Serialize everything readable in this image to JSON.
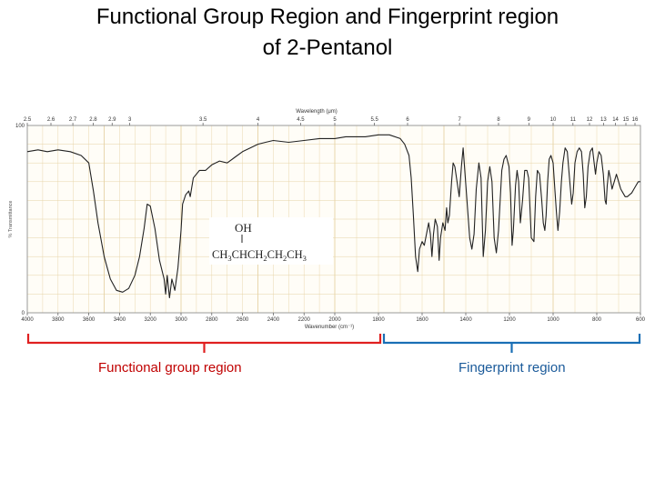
{
  "slide": {
    "title_line1": "Functional Group Region and Fingerprint region",
    "title_line2": "of 2-Pentanol"
  },
  "chart_data": {
    "type": "line",
    "top_axis_label": "Wavelength (μm)",
    "bottom_axis_label": "Wavenumber (cm⁻¹)",
    "ylabel": "% Transmittance",
    "y_tick_labels": [
      "100",
      "0"
    ],
    "top_ticks": [
      "2.5",
      "2.6",
      "2.7",
      "2.8",
      "2.9",
      "3",
      "3.5",
      "4",
      "4.5",
      "5",
      "5.5",
      "6",
      "7",
      "8",
      "9",
      "10",
      "11",
      "12",
      "13",
      "14",
      "15",
      "16"
    ],
    "bottom_ticks": [
      "4000",
      "3800",
      "3600",
      "3400",
      "3200",
      "3000",
      "2800",
      "2600",
      "2400",
      "2200",
      "2000",
      "1800",
      "1600",
      "1400",
      "1200",
      "1000",
      "800",
      "600"
    ],
    "xlim": [
      4000,
      600
    ],
    "ylim": [
      0,
      100
    ],
    "grid": true,
    "series": [
      {
        "points": [
          [
            4000,
            86
          ],
          [
            3930,
            87
          ],
          [
            3870,
            86
          ],
          [
            3800,
            87
          ],
          [
            3720,
            86
          ],
          [
            3650,
            84
          ],
          [
            3600,
            80
          ],
          [
            3570,
            65
          ],
          [
            3540,
            48
          ],
          [
            3500,
            30
          ],
          [
            3460,
            18
          ],
          [
            3420,
            12
          ],
          [
            3380,
            11
          ],
          [
            3340,
            13
          ],
          [
            3300,
            20
          ],
          [
            3270,
            30
          ],
          [
            3240,
            45
          ],
          [
            3220,
            58
          ],
          [
            3200,
            57
          ],
          [
            3170,
            45
          ],
          [
            3140,
            28
          ],
          [
            3110,
            18
          ],
          [
            3100,
            10
          ],
          [
            3090,
            20
          ],
          [
            3075,
            8
          ],
          [
            3060,
            18
          ],
          [
            3040,
            12
          ],
          [
            3020,
            24
          ],
          [
            3000,
            44
          ],
          [
            2990,
            58
          ],
          [
            2970,
            63
          ],
          [
            2950,
            65
          ],
          [
            2940,
            62
          ],
          [
            2920,
            72
          ],
          [
            2880,
            76
          ],
          [
            2840,
            76
          ],
          [
            2800,
            79
          ],
          [
            2750,
            81
          ],
          [
            2700,
            80
          ],
          [
            2650,
            83
          ],
          [
            2600,
            86
          ],
          [
            2550,
            88
          ],
          [
            2500,
            90
          ],
          [
            2450,
            91
          ],
          [
            2400,
            92
          ],
          [
            2300,
            91
          ],
          [
            2200,
            92
          ],
          [
            2100,
            93
          ],
          [
            2000,
            93
          ],
          [
            1950,
            94
          ],
          [
            1900,
            94
          ],
          [
            1860,
            94
          ],
          [
            1800,
            95
          ],
          [
            1750,
            95
          ],
          [
            1700,
            93
          ],
          [
            1680,
            90
          ],
          [
            1660,
            84
          ],
          [
            1650,
            72
          ],
          [
            1640,
            52
          ],
          [
            1630,
            30
          ],
          [
            1620,
            22
          ],
          [
            1612,
            34
          ],
          [
            1600,
            38
          ],
          [
            1590,
            36
          ],
          [
            1580,
            42
          ],
          [
            1570,
            48
          ],
          [
            1562,
            42
          ],
          [
            1555,
            30
          ],
          [
            1548,
            42
          ],
          [
            1540,
            50
          ],
          [
            1530,
            46
          ],
          [
            1522,
            28
          ],
          [
            1516,
            40
          ],
          [
            1505,
            48
          ],
          [
            1495,
            44
          ],
          [
            1488,
            56
          ],
          [
            1482,
            48
          ],
          [
            1475,
            52
          ],
          [
            1465,
            70
          ],
          [
            1458,
            80
          ],
          [
            1450,
            78
          ],
          [
            1440,
            70
          ],
          [
            1430,
            62
          ],
          [
            1420,
            78
          ],
          [
            1412,
            88
          ],
          [
            1402,
            72
          ],
          [
            1392,
            56
          ],
          [
            1382,
            40
          ],
          [
            1372,
            34
          ],
          [
            1362,
            42
          ],
          [
            1352,
            66
          ],
          [
            1340,
            80
          ],
          [
            1330,
            72
          ],
          [
            1320,
            30
          ],
          [
            1310,
            44
          ],
          [
            1300,
            70
          ],
          [
            1290,
            78
          ],
          [
            1280,
            70
          ],
          [
            1270,
            40
          ],
          [
            1260,
            32
          ],
          [
            1250,
            44
          ],
          [
            1235,
            76
          ],
          [
            1225,
            82
          ],
          [
            1215,
            84
          ],
          [
            1202,
            78
          ],
          [
            1195,
            64
          ],
          [
            1188,
            36
          ],
          [
            1182,
            44
          ],
          [
            1172,
            68
          ],
          [
            1165,
            76
          ],
          [
            1158,
            70
          ],
          [
            1150,
            48
          ],
          [
            1140,
            60
          ],
          [
            1130,
            76
          ],
          [
            1120,
            76
          ],
          [
            1112,
            72
          ],
          [
            1100,
            40
          ],
          [
            1088,
            38
          ],
          [
            1080,
            62
          ],
          [
            1072,
            76
          ],
          [
            1062,
            74
          ],
          [
            1052,
            60
          ],
          [
            1045,
            48
          ],
          [
            1038,
            44
          ],
          [
            1032,
            52
          ],
          [
            1025,
            70
          ],
          [
            1018,
            82
          ],
          [
            1010,
            84
          ],
          [
            1000,
            80
          ],
          [
            992,
            66
          ],
          [
            985,
            54
          ],
          [
            978,
            44
          ],
          [
            970,
            54
          ],
          [
            962,
            70
          ],
          [
            955,
            80
          ],
          [
            945,
            88
          ],
          [
            935,
            86
          ],
          [
            925,
            72
          ],
          [
            915,
            58
          ],
          [
            908,
            64
          ],
          [
            900,
            80
          ],
          [
            890,
            86
          ],
          [
            880,
            88
          ],
          [
            870,
            86
          ],
          [
            862,
            74
          ],
          [
            855,
            56
          ],
          [
            848,
            62
          ],
          [
            840,
            78
          ],
          [
            830,
            86
          ],
          [
            820,
            88
          ],
          [
            812,
            80
          ],
          [
            806,
            74
          ],
          [
            800,
            80
          ],
          [
            790,
            86
          ],
          [
            780,
            84
          ],
          [
            770,
            74
          ],
          [
            762,
            60
          ],
          [
            757,
            58
          ],
          [
            752,
            68
          ],
          [
            745,
            76
          ],
          [
            738,
            72
          ],
          [
            730,
            66
          ],
          [
            720,
            70
          ],
          [
            710,
            74
          ],
          [
            700,
            70
          ],
          [
            690,
            66
          ],
          [
            680,
            64
          ],
          [
            670,
            62
          ],
          [
            660,
            62
          ],
          [
            650,
            63
          ],
          [
            640,
            64
          ],
          [
            630,
            66
          ],
          [
            620,
            68
          ],
          [
            610,
            70
          ],
          [
            600,
            70
          ]
        ]
      }
    ],
    "structure": {
      "oh_label": "OH",
      "formula_parts": [
        "CH",
        "3",
        "CHCH",
        "2",
        "CH",
        "2",
        "CH",
        "3"
      ]
    },
    "regions": [
      {
        "label": "Functional group region",
        "from": 4000,
        "to": 1450,
        "color": "#e02020"
      },
      {
        "label": "Fingerprint region",
        "from": 1450,
        "to": 600,
        "color": "#1a6fb5"
      }
    ]
  },
  "colors": {
    "grid": "#e6d3a5",
    "frame": "#9a9a9a",
    "curve": "#222222",
    "functional_text": "#c00000",
    "fingerprint_text": "#1a5a9a"
  }
}
